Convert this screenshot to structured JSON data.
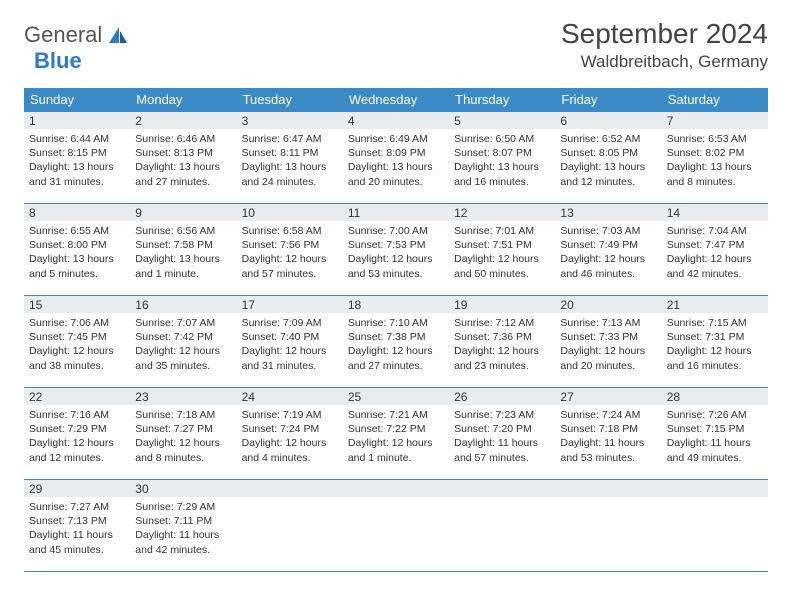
{
  "brand": {
    "word1": "General",
    "word2": "Blue",
    "word1_color": "#666666",
    "word2_color": "#2f7bbf",
    "icon_color": "#2f7bbf"
  },
  "header": {
    "month_title": "September 2024",
    "location": "Waldbreitbach, Germany"
  },
  "theme": {
    "header_bg": "#3b8bc9",
    "header_fg": "#ffffff",
    "row_border": "#3b8bc9",
    "daynum_bg": "#e9ecef",
    "text_color": "#333333",
    "body_fontsize": 10.5
  },
  "weekdays": [
    "Sunday",
    "Monday",
    "Tuesday",
    "Wednesday",
    "Thursday",
    "Friday",
    "Saturday"
  ],
  "weeks": [
    [
      {
        "num": "1",
        "sunrise": "Sunrise: 6:44 AM",
        "sunset": "Sunset: 8:15 PM",
        "daylight": "Daylight: 13 hours and 31 minutes."
      },
      {
        "num": "2",
        "sunrise": "Sunrise: 6:46 AM",
        "sunset": "Sunset: 8:13 PM",
        "daylight": "Daylight: 13 hours and 27 minutes."
      },
      {
        "num": "3",
        "sunrise": "Sunrise: 6:47 AM",
        "sunset": "Sunset: 8:11 PM",
        "daylight": "Daylight: 13 hours and 24 minutes."
      },
      {
        "num": "4",
        "sunrise": "Sunrise: 6:49 AM",
        "sunset": "Sunset: 8:09 PM",
        "daylight": "Daylight: 13 hours and 20 minutes."
      },
      {
        "num": "5",
        "sunrise": "Sunrise: 6:50 AM",
        "sunset": "Sunset: 8:07 PM",
        "daylight": "Daylight: 13 hours and 16 minutes."
      },
      {
        "num": "6",
        "sunrise": "Sunrise: 6:52 AM",
        "sunset": "Sunset: 8:05 PM",
        "daylight": "Daylight: 13 hours and 12 minutes."
      },
      {
        "num": "7",
        "sunrise": "Sunrise: 6:53 AM",
        "sunset": "Sunset: 8:02 PM",
        "daylight": "Daylight: 13 hours and 8 minutes."
      }
    ],
    [
      {
        "num": "8",
        "sunrise": "Sunrise: 6:55 AM",
        "sunset": "Sunset: 8:00 PM",
        "daylight": "Daylight: 13 hours and 5 minutes."
      },
      {
        "num": "9",
        "sunrise": "Sunrise: 6:56 AM",
        "sunset": "Sunset: 7:58 PM",
        "daylight": "Daylight: 13 hours and 1 minute."
      },
      {
        "num": "10",
        "sunrise": "Sunrise: 6:58 AM",
        "sunset": "Sunset: 7:56 PM",
        "daylight": "Daylight: 12 hours and 57 minutes."
      },
      {
        "num": "11",
        "sunrise": "Sunrise: 7:00 AM",
        "sunset": "Sunset: 7:53 PM",
        "daylight": "Daylight: 12 hours and 53 minutes."
      },
      {
        "num": "12",
        "sunrise": "Sunrise: 7:01 AM",
        "sunset": "Sunset: 7:51 PM",
        "daylight": "Daylight: 12 hours and 50 minutes."
      },
      {
        "num": "13",
        "sunrise": "Sunrise: 7:03 AM",
        "sunset": "Sunset: 7:49 PM",
        "daylight": "Daylight: 12 hours and 46 minutes."
      },
      {
        "num": "14",
        "sunrise": "Sunrise: 7:04 AM",
        "sunset": "Sunset: 7:47 PM",
        "daylight": "Daylight: 12 hours and 42 minutes."
      }
    ],
    [
      {
        "num": "15",
        "sunrise": "Sunrise: 7:06 AM",
        "sunset": "Sunset: 7:45 PM",
        "daylight": "Daylight: 12 hours and 38 minutes."
      },
      {
        "num": "16",
        "sunrise": "Sunrise: 7:07 AM",
        "sunset": "Sunset: 7:42 PM",
        "daylight": "Daylight: 12 hours and 35 minutes."
      },
      {
        "num": "17",
        "sunrise": "Sunrise: 7:09 AM",
        "sunset": "Sunset: 7:40 PM",
        "daylight": "Daylight: 12 hours and 31 minutes."
      },
      {
        "num": "18",
        "sunrise": "Sunrise: 7:10 AM",
        "sunset": "Sunset: 7:38 PM",
        "daylight": "Daylight: 12 hours and 27 minutes."
      },
      {
        "num": "19",
        "sunrise": "Sunrise: 7:12 AM",
        "sunset": "Sunset: 7:36 PM",
        "daylight": "Daylight: 12 hours and 23 minutes."
      },
      {
        "num": "20",
        "sunrise": "Sunrise: 7:13 AM",
        "sunset": "Sunset: 7:33 PM",
        "daylight": "Daylight: 12 hours and 20 minutes."
      },
      {
        "num": "21",
        "sunrise": "Sunrise: 7:15 AM",
        "sunset": "Sunset: 7:31 PM",
        "daylight": "Daylight: 12 hours and 16 minutes."
      }
    ],
    [
      {
        "num": "22",
        "sunrise": "Sunrise: 7:16 AM",
        "sunset": "Sunset: 7:29 PM",
        "daylight": "Daylight: 12 hours and 12 minutes."
      },
      {
        "num": "23",
        "sunrise": "Sunrise: 7:18 AM",
        "sunset": "Sunset: 7:27 PM",
        "daylight": "Daylight: 12 hours and 8 minutes."
      },
      {
        "num": "24",
        "sunrise": "Sunrise: 7:19 AM",
        "sunset": "Sunset: 7:24 PM",
        "daylight": "Daylight: 12 hours and 4 minutes."
      },
      {
        "num": "25",
        "sunrise": "Sunrise: 7:21 AM",
        "sunset": "Sunset: 7:22 PM",
        "daylight": "Daylight: 12 hours and 1 minute."
      },
      {
        "num": "26",
        "sunrise": "Sunrise: 7:23 AM",
        "sunset": "Sunset: 7:20 PM",
        "daylight": "Daylight: 11 hours and 57 minutes."
      },
      {
        "num": "27",
        "sunrise": "Sunrise: 7:24 AM",
        "sunset": "Sunset: 7:18 PM",
        "daylight": "Daylight: 11 hours and 53 minutes."
      },
      {
        "num": "28",
        "sunrise": "Sunrise: 7:26 AM",
        "sunset": "Sunset: 7:15 PM",
        "daylight": "Daylight: 11 hours and 49 minutes."
      }
    ],
    [
      {
        "num": "29",
        "sunrise": "Sunrise: 7:27 AM",
        "sunset": "Sunset: 7:13 PM",
        "daylight": "Daylight: 11 hours and 45 minutes."
      },
      {
        "num": "30",
        "sunrise": "Sunrise: 7:29 AM",
        "sunset": "Sunset: 7:11 PM",
        "daylight": "Daylight: 11 hours and 42 minutes."
      },
      {
        "num": "",
        "sunrise": "",
        "sunset": "",
        "daylight": ""
      },
      {
        "num": "",
        "sunrise": "",
        "sunset": "",
        "daylight": ""
      },
      {
        "num": "",
        "sunrise": "",
        "sunset": "",
        "daylight": ""
      },
      {
        "num": "",
        "sunrise": "",
        "sunset": "",
        "daylight": ""
      },
      {
        "num": "",
        "sunrise": "",
        "sunset": "",
        "daylight": ""
      }
    ]
  ]
}
